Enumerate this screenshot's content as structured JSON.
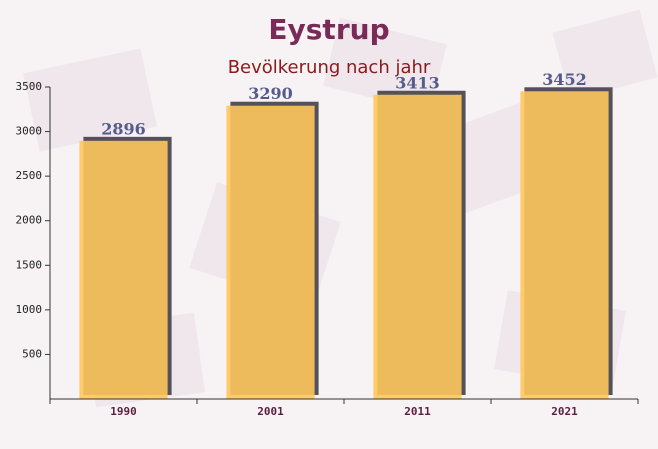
{
  "chart_data": {
    "type": "bar",
    "title": "Eystrup",
    "subtitle": "Bevölkerung nach jahr",
    "categories": [
      "1990",
      "2001",
      "2011",
      "2021"
    ],
    "values": [
      2896,
      3290,
      3413,
      3452
    ],
    "color": "#ffc65c",
    "ylim": [
      0,
      3500
    ],
    "yticks": [
      500,
      1000,
      1500,
      2000,
      2500,
      3000,
      3500
    ],
    "grid": false
  }
}
